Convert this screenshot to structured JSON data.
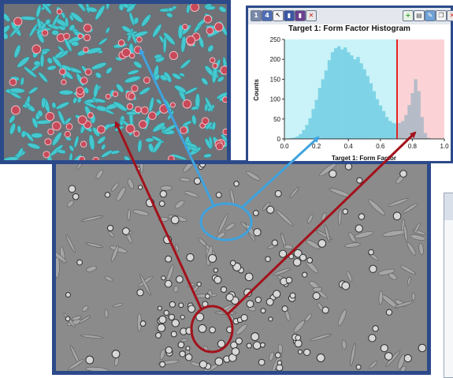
{
  "toolbar": {
    "btn1": "1",
    "btn2": "4"
  },
  "histogram": {
    "title": "Target 1: Form Factor Histogram",
    "xlabel": "Target 1: Form Factor",
    "ylabel": "Counts",
    "x_ticks": [
      "0.0",
      "0.2",
      "0.4",
      "0.6",
      "0.8",
      "1.0"
    ],
    "y_ticks": [
      "0",
      "50",
      "100",
      "150",
      "200",
      "250"
    ]
  },
  "colors": {
    "frame": "#2c4a8a",
    "cyan_region": "#c9f3f8",
    "red_region": "#fbd3d6",
    "threshold": "#e02424",
    "blue_arrow": "#3fa3df",
    "red_arrow": "#a3121b"
  },
  "chart_data": {
    "type": "bar",
    "title": "Target 1: Form Factor Histogram",
    "xlabel": "Target 1: Form Factor",
    "ylabel": "Counts",
    "xlim": [
      0.0,
      1.0
    ],
    "ylim": [
      0,
      250
    ],
    "threshold_x": 0.71,
    "bins": [
      0.02,
      0.04,
      0.06,
      0.08,
      0.1,
      0.12,
      0.14,
      0.16,
      0.18,
      0.2,
      0.22,
      0.24,
      0.26,
      0.28,
      0.3,
      0.32,
      0.34,
      0.36,
      0.38,
      0.4,
      0.42,
      0.44,
      0.46,
      0.48,
      0.5,
      0.52,
      0.54,
      0.56,
      0.58,
      0.6,
      0.62,
      0.64,
      0.66,
      0.68,
      0.7,
      0.72,
      0.74,
      0.76,
      0.78,
      0.8,
      0.82,
      0.84,
      0.86,
      0.88,
      0.9
    ],
    "values": [
      1,
      2,
      3,
      6,
      12,
      22,
      35,
      52,
      75,
      98,
      128,
      150,
      172,
      198,
      218,
      228,
      233,
      225,
      230,
      218,
      210,
      200,
      206,
      190,
      175,
      158,
      140,
      120,
      100,
      84,
      70,
      55,
      45,
      40,
      38,
      40,
      45,
      60,
      85,
      115,
      150,
      120,
      55,
      15,
      3
    ]
  }
}
